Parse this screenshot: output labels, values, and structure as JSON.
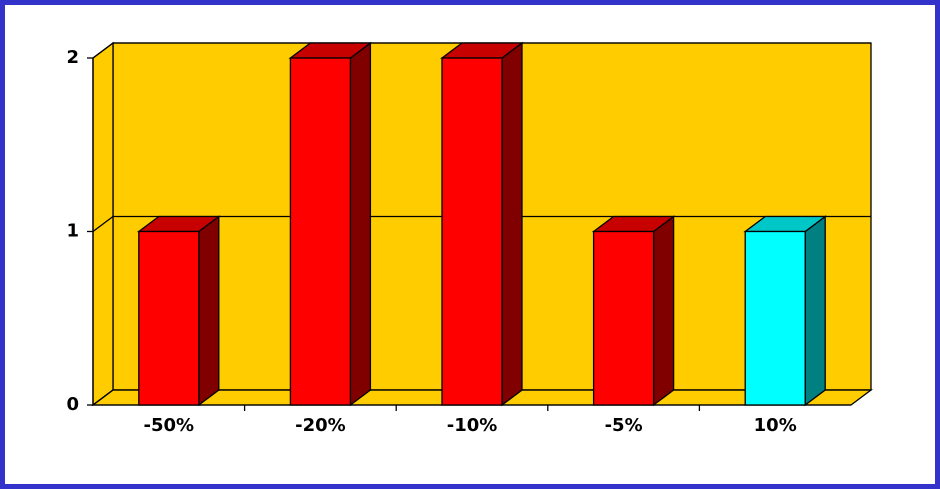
{
  "chart_data": {
    "type": "bar3d",
    "categories": [
      "-50%",
      "-20%",
      "-10%",
      "-5%",
      "10%"
    ],
    "values": [
      1,
      2,
      2,
      1,
      1
    ],
    "colors": [
      "#ff0000",
      "#ff0000",
      "#ff0000",
      "#ff0000",
      "#00ffff"
    ],
    "wall_color": "#ffcc00",
    "ylim": [
      0,
      2
    ],
    "yticks": [
      0,
      1,
      2
    ],
    "grid": true
  }
}
